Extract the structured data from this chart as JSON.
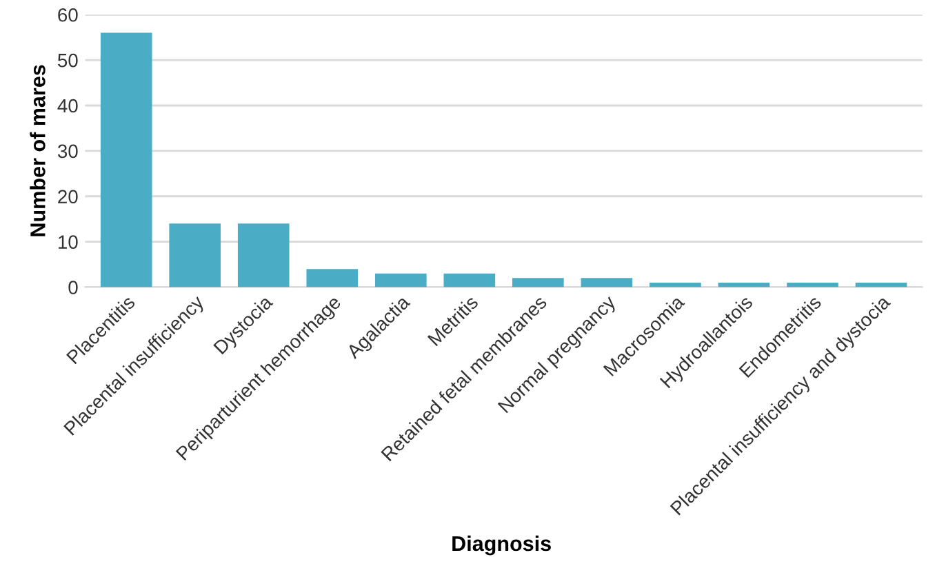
{
  "chart_data": {
    "type": "bar",
    "xlabel": "Diagnosis",
    "ylabel": "Number of mares",
    "categories": [
      "Placentitis",
      "Placental insufficiency",
      "Dystocia",
      "Periparturient hemorrhage",
      "Agalactia",
      "Metritis",
      "Retained fetal membranes",
      "Normal pregnancy",
      "Macrosomia",
      "Hydroallantois",
      "Endometritis",
      "Placental insufficiency and dystocia"
    ],
    "values": [
      56,
      14,
      14,
      4,
      3,
      3,
      2,
      2,
      1,
      1,
      1,
      1
    ],
    "color": "#4bacc6",
    "ylim": [
      0,
      60
    ],
    "yticks": [
      0,
      10,
      20,
      30,
      40,
      50,
      60
    ],
    "grid": "y"
  }
}
